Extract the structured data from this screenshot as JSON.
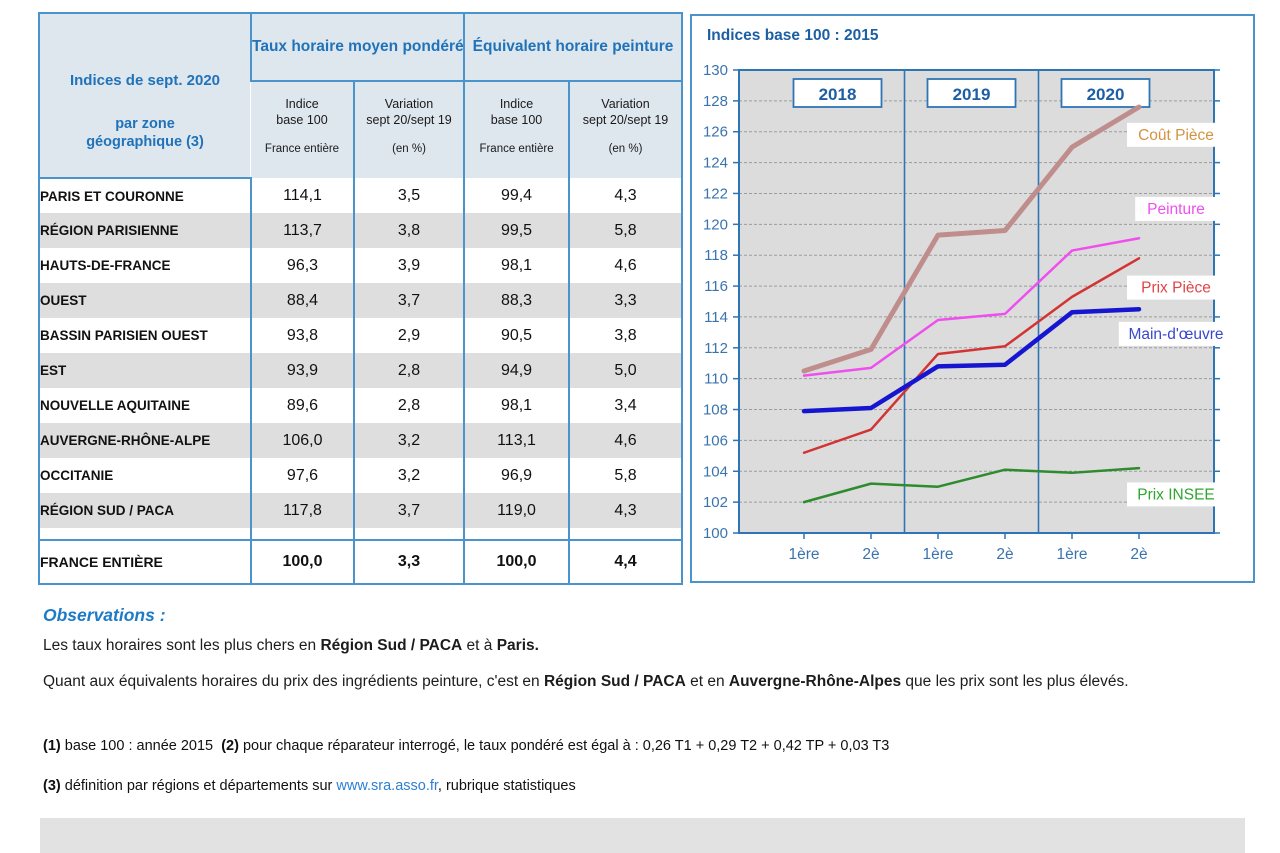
{
  "table": {
    "corner_title_line1": "Indices de sept. 2020",
    "corner_title_line2": "par zone",
    "corner_title_line3": "géographique (3)",
    "group_headers": [
      "Taux horaire moyen pondéré",
      "Équivalent horaire peinture"
    ],
    "sub_headers": [
      {
        "line1": "Indice",
        "line2": "base 100",
        "note": "France entière"
      },
      {
        "line1": "Variation",
        "line2": "sept 20/sept 19",
        "note": "(en %)"
      },
      {
        "line1": "Indice",
        "line2": "base 100",
        "note": "France entière"
      },
      {
        "line1": "Variation",
        "line2": "sept 20/sept 19",
        "note": "(en %)"
      }
    ],
    "rows": [
      {
        "zone": "PARIS ET COURONNE",
        "values": [
          "114,1",
          "3,5",
          "99,4",
          "4,3"
        ]
      },
      {
        "zone": "RÉGION PARISIENNE",
        "values": [
          "113,7",
          "3,8",
          "99,5",
          "5,8"
        ]
      },
      {
        "zone": "HAUTS-DE-FRANCE",
        "values": [
          "96,3",
          "3,9",
          "98,1",
          "4,6"
        ]
      },
      {
        "zone": "OUEST",
        "values": [
          "88,4",
          "3,7",
          "88,3",
          "3,3"
        ]
      },
      {
        "zone": "BASSIN PARISIEN OUEST",
        "values": [
          "93,8",
          "2,9",
          "90,5",
          "3,8"
        ]
      },
      {
        "zone": "EST",
        "values": [
          "93,9",
          "2,8",
          "94,9",
          "5,0"
        ]
      },
      {
        "zone": "NOUVELLE AQUITAINE",
        "values": [
          "89,6",
          "2,8",
          "98,1",
          "3,4"
        ]
      },
      {
        "zone": "AUVERGNE-RHÔNE-ALPE",
        "values": [
          "106,0",
          "3,2",
          "113,1",
          "4,6"
        ]
      },
      {
        "zone": "OCCITANIE",
        "values": [
          "97,6",
          "3,2",
          "96,9",
          "5,8"
        ]
      },
      {
        "zone": "RÉGION SUD / PACA",
        "values": [
          "117,8",
          "3,7",
          "119,0",
          "4,3"
        ]
      }
    ],
    "total_row": {
      "zone": "FRANCE ENTIÈRE",
      "values": [
        "100,0",
        "3,3",
        "100,0",
        "4,4"
      ]
    }
  },
  "chart_data": {
    "type": "line",
    "title": "Indices base 100 : 2015",
    "x_tick_labels": [
      "1ère",
      "2è",
      "1ère",
      "2è",
      "1ère",
      "2è"
    ],
    "year_groups": [
      "2018",
      "2019",
      "2020"
    ],
    "ylim": [
      100,
      130
    ],
    "y_step": 2,
    "grid": true,
    "legend_position": "right-inline-labels",
    "plot_bg": "#dcdcdc",
    "axis_color": "#2e75b6",
    "tick_label_color": "#3b74ad",
    "year_label_color": "#1d5fa5",
    "series": [
      {
        "key": "cout-piece",
        "name": "Coût Pièce",
        "color": "#c08d8d",
        "label_color": "#d29440",
        "width": 5,
        "label_value": 125.8,
        "values": [
          110.5,
          111.9,
          119.3,
          119.6,
          125.0,
          127.6
        ]
      },
      {
        "key": "peinture",
        "name": "Peinture",
        "color": "#ee4fee",
        "label_color": "#ee4fee",
        "width": 2.5,
        "label_value": 121.0,
        "values": [
          110.2,
          110.7,
          113.8,
          114.2,
          118.3,
          119.1
        ]
      },
      {
        "key": "prix-piece",
        "name": "Prix Pièce",
        "color": "#d23434",
        "label_color": "#e04545",
        "width": 2.5,
        "label_value": 115.9,
        "values": [
          105.2,
          106.7,
          111.6,
          112.1,
          115.3,
          117.8
        ]
      },
      {
        "key": "main-doeuvre",
        "name": "Main-d'œuvre",
        "color": "#1616d0",
        "label_color": "#3a49cc",
        "width": 4.5,
        "label_value": 112.9,
        "values": [
          107.9,
          108.1,
          110.8,
          110.9,
          114.3,
          114.5
        ]
      },
      {
        "key": "prix-insee",
        "name": "Prix INSEE",
        "color": "#2e8b2e",
        "label_color": "#2fa52f",
        "width": 2.5,
        "label_value": 102.5,
        "values": [
          102.0,
          103.2,
          103.0,
          104.1,
          103.9,
          104.2
        ]
      }
    ]
  },
  "observations": {
    "heading": "Observations :",
    "paragraphs": [
      {
        "segments": [
          {
            "t": "Les taux horaires sont les plus chers en "
          },
          {
            "t": "Région Sud / PACA",
            "b": true
          },
          {
            "t": " et à "
          },
          {
            "t": "Paris.",
            "b": true
          }
        ]
      },
      {
        "segments": [
          {
            "t": "Quant aux équivalents horaires du prix des ingrédients peinture, c'est en "
          },
          {
            "t": "Région Sud / PACA",
            "b": true
          },
          {
            "t": " et en "
          },
          {
            "t": "Auvergne-Rhône-Alpes",
            "b": true
          },
          {
            "t": " que les prix sont les plus élevés."
          }
        ]
      }
    ]
  },
  "footnotes": [
    {
      "segments": [
        {
          "t": "(1)",
          "b": true
        },
        {
          "t": " base 100 : année 2015  "
        },
        {
          "t": "(2)",
          "b": true
        },
        {
          "t": " pour chaque réparateur interrogé, le taux pondéré est égal à : 0,26 T1 + 0,29 T2 + 0,42 TP + 0,03 T3"
        }
      ]
    },
    {
      "segments": [
        {
          "t": "(3)",
          "b": true
        },
        {
          "t": " définition par régions et départements sur "
        },
        {
          "t": "www.sra.asso.fr",
          "link": true
        },
        {
          "t": ", rubrique statistiques"
        }
      ]
    }
  ]
}
